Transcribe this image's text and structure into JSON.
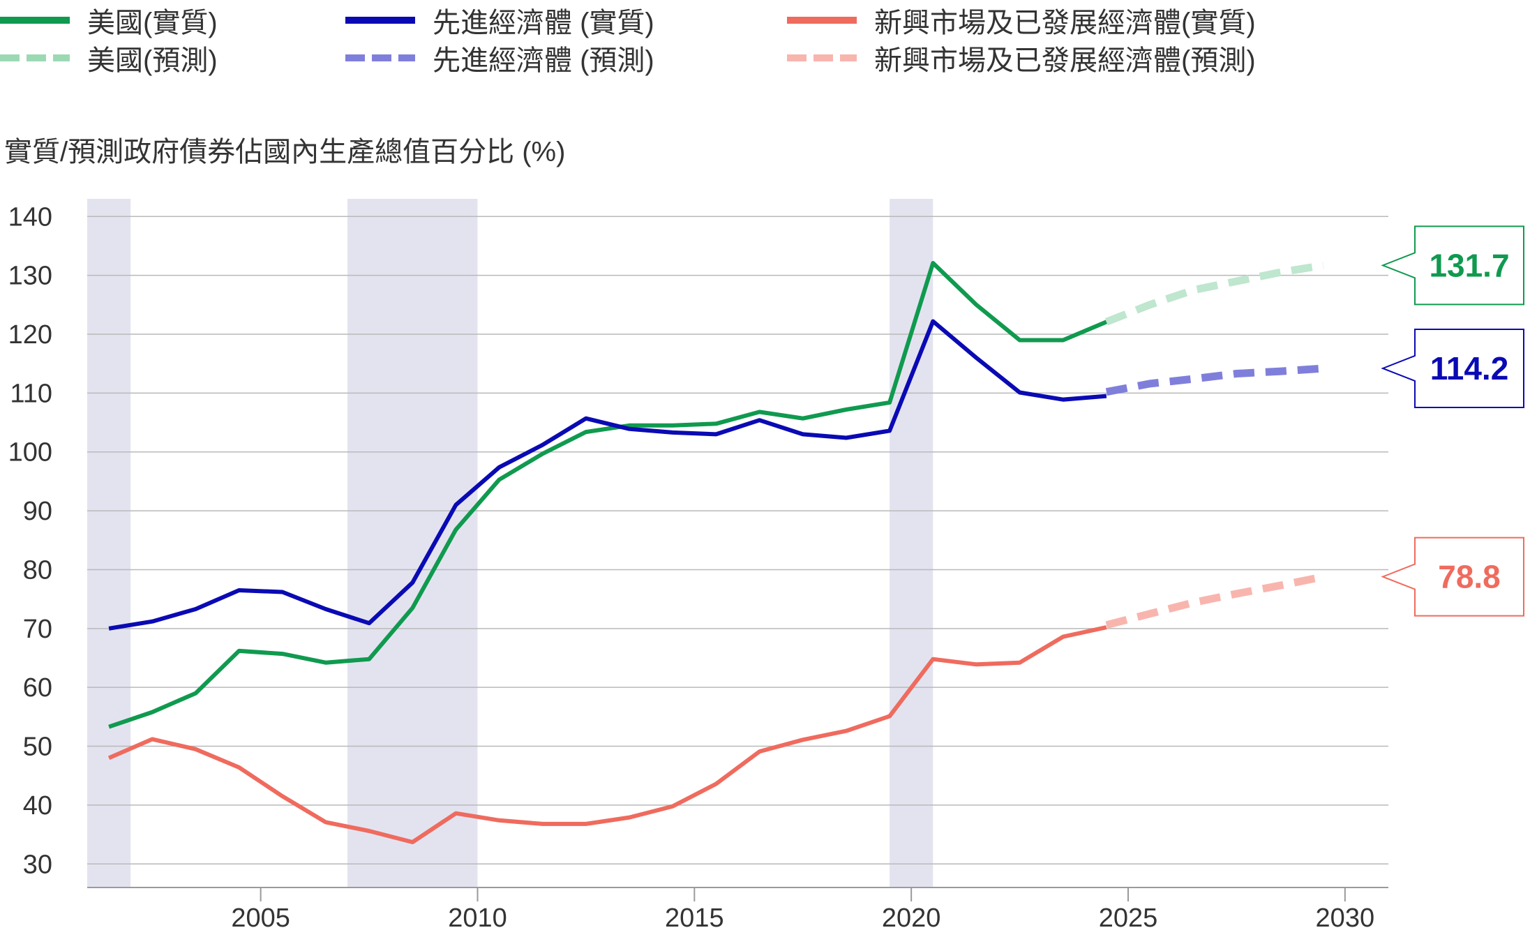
{
  "legend": {
    "us_actual": "美國(實質)",
    "us_forecast": "美國(預測)",
    "adv_actual": "先進經濟體 (實質)",
    "adv_forecast": "先進經濟體 (預測)",
    "em_actual": "新興市場及已發展經濟體(實質)",
    "em_forecast": "新興市場及已發展經濟體(預測)"
  },
  "colors": {
    "us": "#109a4f",
    "us_forecast": "#bfe6cf",
    "adv": "#0a0ab4",
    "adv_forecast": "#7f7fdb",
    "em": "#ef6b5e",
    "em_forecast": "#f8b5ae",
    "recession": "#e3e3f0",
    "grid": "#b9b9b9"
  },
  "chart_data": {
    "type": "line",
    "ylabel": "實質/預測政府債券佔國內生產總值百分比 (%)",
    "ylim": [
      26,
      143
    ],
    "xlim": [
      2001.0,
      2031.0
    ],
    "yticks": [
      "30",
      "40",
      "50",
      "60",
      "70",
      "80",
      "90",
      "100",
      "110",
      "120",
      "130",
      "140"
    ],
    "xticks": [
      "2005",
      "2010",
      "2015",
      "2020",
      "2025",
      "2030"
    ],
    "recession_bands": [
      [
        2001.0,
        2002.0
      ],
      [
        2007.0,
        2010.0
      ],
      [
        2019.5,
        2020.5
      ]
    ],
    "series": [
      {
        "name": "美國(實質)",
        "x": [
          2001.5,
          2002.5,
          2003.5,
          2004.5,
          2005.5,
          2006.5,
          2007.5,
          2008.5,
          2009.5,
          2010.5,
          2011.5,
          2012.5,
          2013.5,
          2014.5,
          2015.5,
          2016.5,
          2017.5,
          2018.5,
          2019.5,
          2020.5,
          2021.5,
          2022.5,
          2023.5,
          2024.5
        ],
        "values": [
          53.3,
          55.8,
          59.0,
          66.2,
          65.7,
          64.2,
          64.8,
          73.5,
          86.8,
          95.3,
          99.7,
          103.4,
          104.5,
          104.5,
          104.8,
          106.8,
          105.7,
          107.2,
          108.4,
          132.1,
          125.0,
          119.0,
          119.0,
          122.1
        ]
      },
      {
        "name": "美國(預測)",
        "x": [
          2024.5,
          2025.5,
          2026.5,
          2027.5,
          2028.5,
          2029.5
        ],
        "values": [
          122.1,
          125.0,
          127.5,
          129.0,
          130.5,
          131.7
        ]
      },
      {
        "name": "先進經濟體 (實質)",
        "x": [
          2001.5,
          2002.5,
          2003.5,
          2004.5,
          2005.5,
          2006.5,
          2007.5,
          2008.5,
          2009.5,
          2010.5,
          2011.5,
          2012.5,
          2013.5,
          2014.5,
          2015.5,
          2016.5,
          2017.5,
          2018.5,
          2019.5,
          2020.5,
          2021.5,
          2022.5,
          2023.5,
          2024.5
        ],
        "values": [
          70.0,
          71.2,
          73.3,
          76.5,
          76.2,
          73.3,
          70.9,
          77.8,
          91.0,
          97.4,
          101.2,
          105.7,
          103.9,
          103.3,
          103.0,
          105.4,
          103.0,
          102.4,
          103.6,
          122.2,
          116.0,
          110.1,
          108.9,
          109.5
        ]
      },
      {
        "name": "先進經濟體 (預測)",
        "x": [
          2024.5,
          2025.5,
          2026.5,
          2027.5,
          2028.5,
          2029.5
        ],
        "values": [
          110.2,
          111.6,
          112.4,
          113.3,
          113.7,
          114.2
        ]
      },
      {
        "name": "新興市場及已發展經濟體(實質)",
        "x": [
          2001.5,
          2002.5,
          2003.5,
          2004.5,
          2005.5,
          2006.5,
          2007.5,
          2008.5,
          2009.5,
          2010.5,
          2011.5,
          2012.5,
          2013.5,
          2014.5,
          2015.5,
          2016.5,
          2017.5,
          2018.5,
          2019.5,
          2020.5,
          2021.5,
          2022.5,
          2023.5,
          2024.5
        ],
        "values": [
          48.0,
          51.2,
          49.5,
          46.4,
          41.5,
          37.1,
          35.6,
          33.7,
          38.6,
          37.4,
          36.8,
          36.8,
          37.9,
          39.8,
          43.6,
          49.1,
          51.1,
          52.6,
          55.1,
          64.8,
          63.9,
          64.2,
          68.6,
          70.2
        ]
      },
      {
        "name": "新興市場及已發展經濟體(預測)",
        "x": [
          2024.5,
          2025.5,
          2026.5,
          2027.5,
          2028.5,
          2029.5
        ],
        "values": [
          70.6,
          72.5,
          74.4,
          75.9,
          77.3,
          78.8
        ]
      }
    ],
    "callouts": [
      {
        "label": "131.7",
        "value": 131.7
      },
      {
        "label": "114.2",
        "value": 114.2
      },
      {
        "label": "78.8",
        "value": 78.8
      }
    ]
  }
}
